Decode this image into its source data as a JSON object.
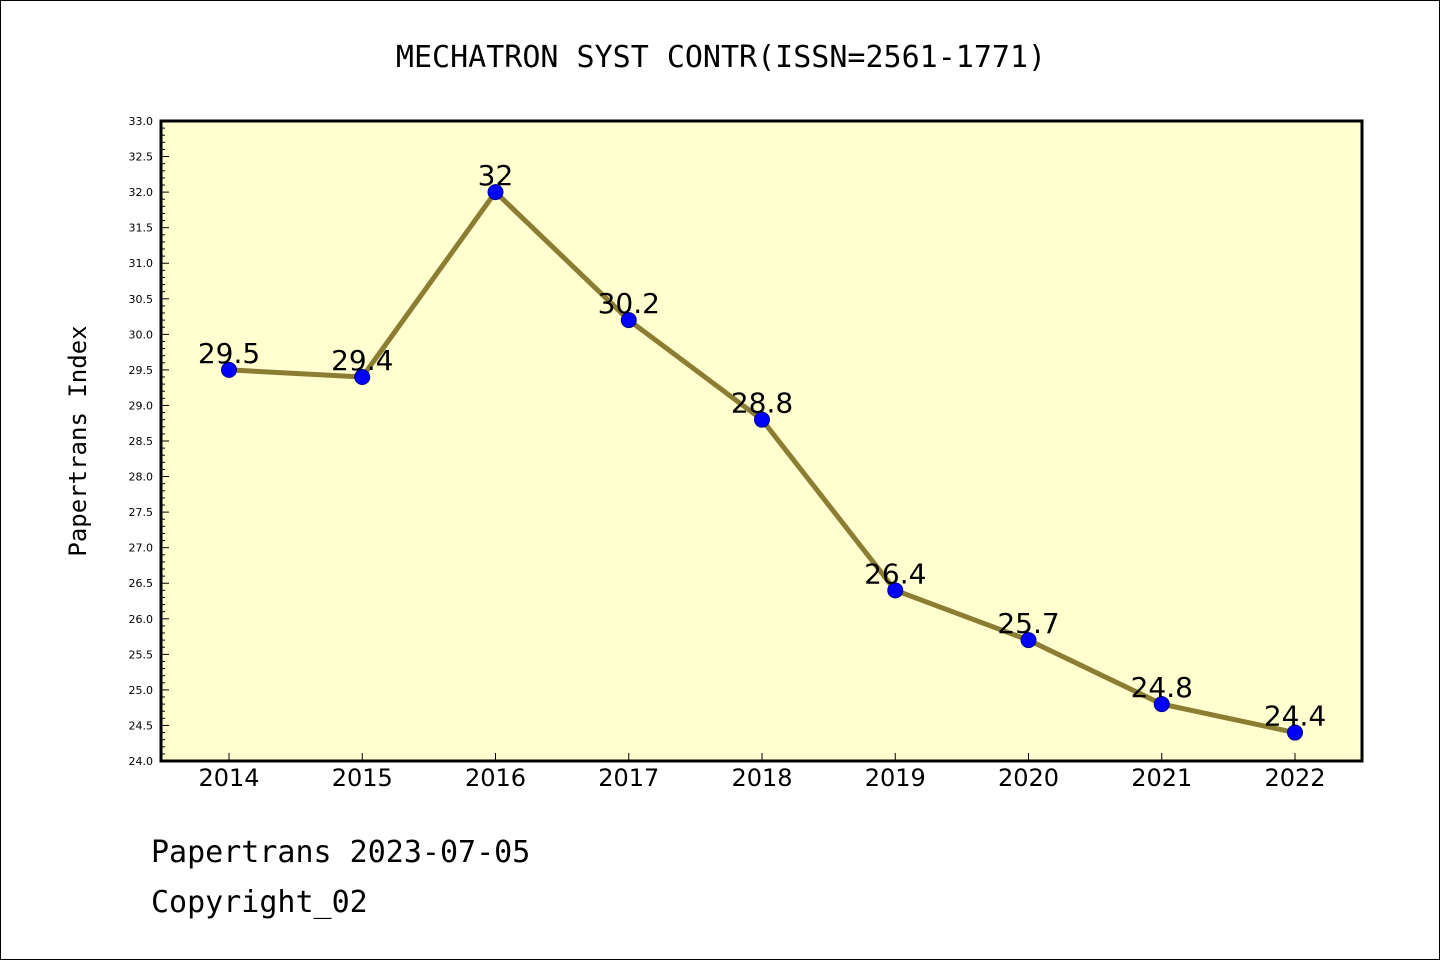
{
  "chart_data": {
    "type": "line",
    "title": "MECHATRON SYST CONTR(ISSN=2561-1771)",
    "xlabel": "",
    "ylabel": "Papertrans Index",
    "categories": [
      "2014",
      "2015",
      "2016",
      "2017",
      "2018",
      "2019",
      "2020",
      "2021",
      "2022"
    ],
    "series": [
      {
        "values": [
          29.5,
          29.4,
          32,
          30.2,
          28.8,
          26.4,
          25.7,
          24.8,
          24.4
        ],
        "data_labels": [
          "29.5",
          "29.4",
          "32",
          "30.2",
          "28.8",
          "26.4",
          "25.7",
          "24.8",
          "24.4"
        ]
      }
    ],
    "ylim": [
      24.0,
      33.0
    ],
    "yticks": [
      "24.0",
      "24.5",
      "25.0",
      "25.5",
      "26.0",
      "26.5",
      "27.0",
      "27.5",
      "28.0",
      "28.5",
      "29.0",
      "29.5",
      "30.0",
      "30.5",
      "31.0",
      "31.5",
      "32.0",
      "32.5",
      "33.0"
    ],
    "grid": false,
    "colors": {
      "plot_background": "#ffffd0",
      "line": "#8b7d32",
      "marker": "#0000ff",
      "marker_edge": "#00008b"
    }
  },
  "footer": {
    "line1": "Papertrans 2023-07-05",
    "line2": "Copyright_02"
  }
}
